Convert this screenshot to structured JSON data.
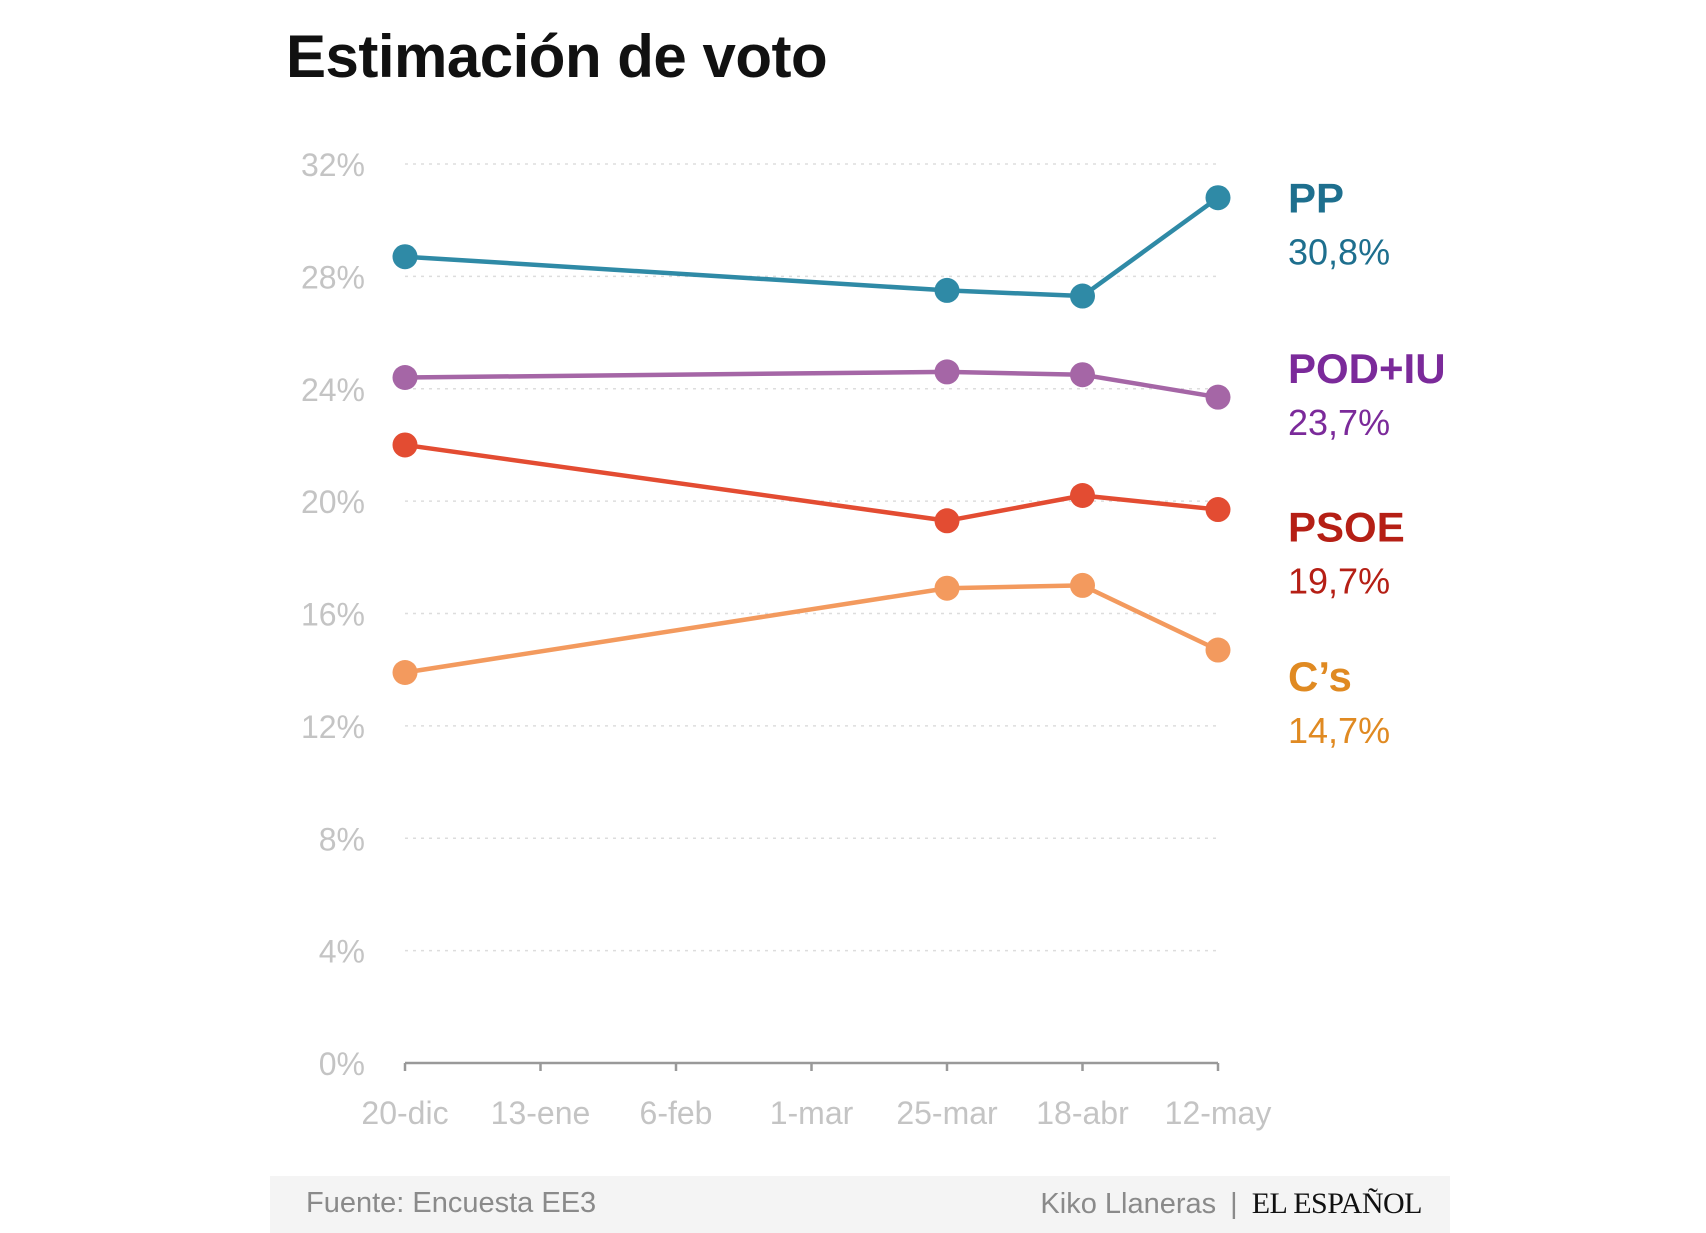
{
  "title": "Estimación de voto",
  "chart_data": {
    "type": "line",
    "x": [
      "20-dic",
      "25-mar",
      "18-abr",
      "12-may"
    ],
    "x_ticks": [
      "20-dic",
      "13-ene",
      "6-feb",
      "1-mar",
      "25-mar",
      "18-abr",
      "12-may"
    ],
    "x_dates": [
      "2015-12-20",
      "2016-03-25",
      "2016-04-18",
      "2016-05-12"
    ],
    "x_tick_dates": [
      "2015-12-20",
      "2016-01-13",
      "2016-02-06",
      "2016-03-01",
      "2016-03-25",
      "2016-04-18",
      "2016-05-12"
    ],
    "y_ticks": [
      "0%",
      "4%",
      "8%",
      "12%",
      "16%",
      "20%",
      "24%",
      "28%",
      "32%"
    ],
    "ylim": [
      0,
      32
    ],
    "grid": true,
    "series": [
      {
        "name": "PP",
        "values": [
          28.7,
          27.5,
          27.3,
          30.8
        ],
        "last_label": "30,8%",
        "line_color": "#2f8aa6",
        "label_color": "#1e6f8e"
      },
      {
        "name": "POD+IU",
        "values": [
          24.4,
          24.6,
          24.5,
          23.7
        ],
        "last_label": "23,7%",
        "line_color": "#a566a6",
        "label_color": "#7b2a9a"
      },
      {
        "name": "PSOE",
        "values": [
          22.0,
          19.3,
          20.2,
          19.7
        ],
        "last_label": "19,7%",
        "line_color": "#e34c32",
        "label_color": "#b51f15"
      },
      {
        "name": "C’s",
        "values": [
          13.9,
          16.9,
          17.0,
          14.7
        ],
        "last_label": "14,7%",
        "line_color": "#f39a5e",
        "label_color": "#e08a22"
      }
    ]
  },
  "footer": {
    "source": "Fuente: Encuesta EE3",
    "author": "Kiko Llaneras",
    "separator": "|",
    "brand": "EL ESPAÑOL"
  },
  "colors": {
    "grid": "#dddddd",
    "axis": "#999999",
    "tick_label": "#c4c4c4",
    "footer_bg": "#f4f4f4"
  }
}
